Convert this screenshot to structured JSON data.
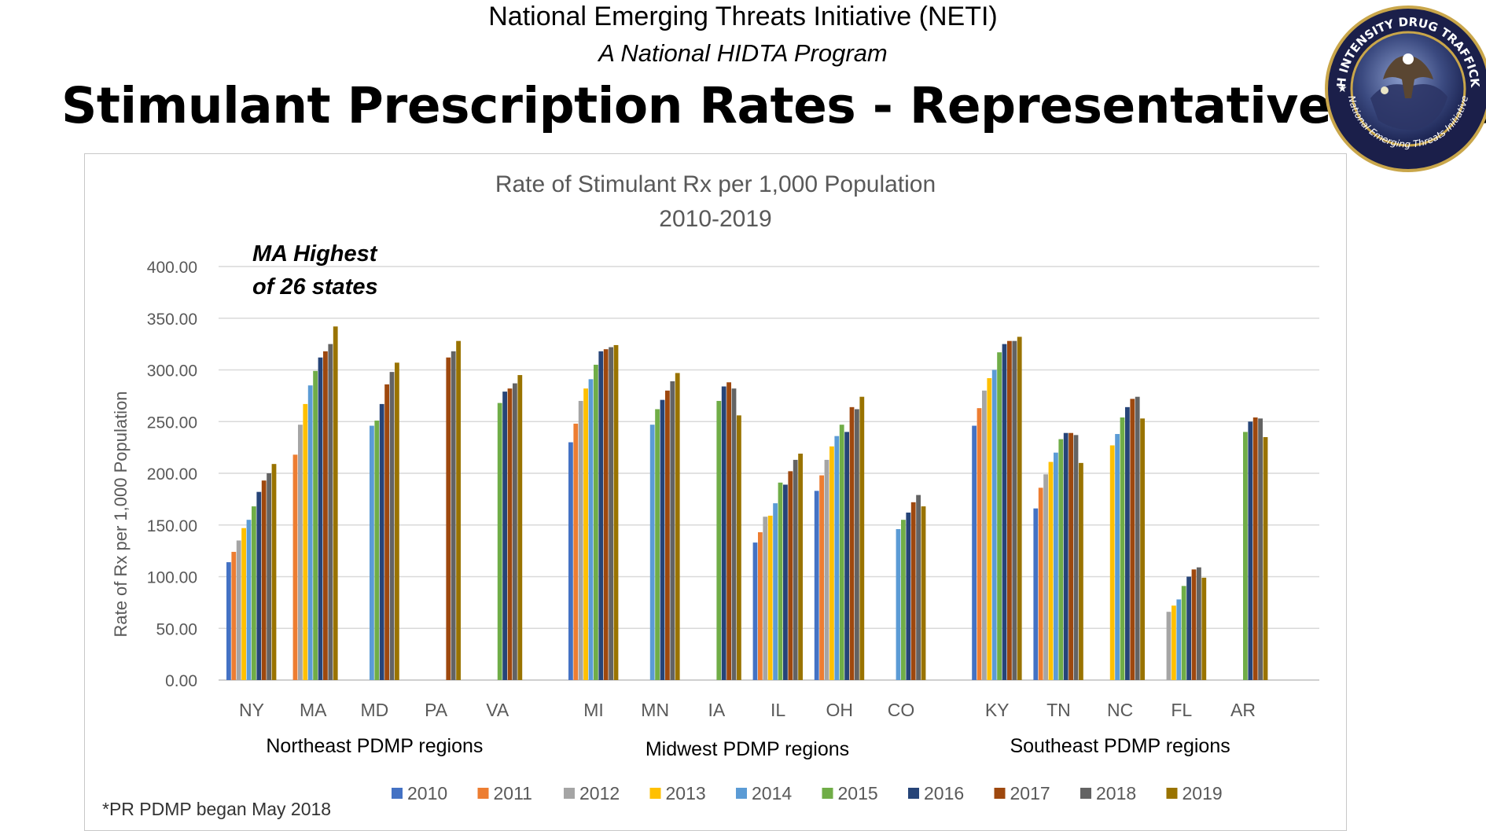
{
  "header": {
    "org_line": "National Emerging Threats Initiative (NETI)",
    "program_line": "A National HIDTA Program",
    "slide_title": "Stimulant Prescription Rates - Representative States"
  },
  "logo": {
    "ring_text_top": "HIGH INTENSITY DRUG TRAFFICKING",
    "ring_text_bottom": "National Emerging Threats Initiative",
    "ring_color": "#1b1f4a",
    "globe_color": "#3b4a80"
  },
  "annotation": {
    "line1": "MA Highest",
    "line2": "of 26 states"
  },
  "footnote": "*PR PDMP began May 2018",
  "chart_data": {
    "type": "bar",
    "title": "Rate of Stimulant Rx per 1,000 Population",
    "subtitle": "2010-2019",
    "ylabel": "Rate of Rx per 1,000 Population",
    "ylim": [
      0,
      400
    ],
    "yticks": [
      "0.00",
      "50.00",
      "100.00",
      "150.00",
      "200.00",
      "250.00",
      "300.00",
      "350.00",
      "400.00"
    ],
    "grid": true,
    "legend_position": "bottom",
    "regions": [
      {
        "label": "Northeast PDMP regions",
        "states": [
          "NY",
          "MA",
          "MD",
          "PA",
          "VA"
        ]
      },
      {
        "label": "Midwest PDMP regions",
        "states": [
          "MI",
          "MN",
          "IA",
          "IL",
          "OH",
          "CO"
        ]
      },
      {
        "label": "Southeast PDMP regions",
        "states": [
          "KY",
          "TN",
          "NC",
          "FL",
          "AR"
        ]
      }
    ],
    "categories": [
      "NY",
      "MA",
      "MD",
      "PA",
      "VA",
      "MI",
      "MN",
      "IA",
      "IL",
      "OH",
      "CO",
      "KY",
      "TN",
      "NC",
      "FL",
      "AR"
    ],
    "series": [
      {
        "name": "2010",
        "color": "#4472c4",
        "values": [
          114,
          null,
          null,
          null,
          null,
          230,
          null,
          null,
          133,
          183,
          null,
          246,
          166,
          null,
          null,
          null
        ]
      },
      {
        "name": "2011",
        "color": "#ed7d31",
        "values": [
          124,
          218,
          null,
          null,
          null,
          248,
          null,
          null,
          143,
          198,
          null,
          263,
          186,
          null,
          null,
          null
        ]
      },
      {
        "name": "2012",
        "color": "#a5a5a5",
        "values": [
          135,
          247,
          null,
          null,
          null,
          270,
          null,
          null,
          158,
          213,
          null,
          280,
          199,
          null,
          66,
          null
        ]
      },
      {
        "name": "2013",
        "color": "#ffc000",
        "values": [
          147,
          267,
          null,
          null,
          null,
          282,
          null,
          null,
          159,
          226,
          null,
          292,
          211,
          227,
          72,
          null
        ]
      },
      {
        "name": "2014",
        "color": "#5b9bd5",
        "values": [
          155,
          285,
          246,
          null,
          null,
          291,
          247,
          null,
          171,
          236,
          146,
          300,
          220,
          238,
          78,
          null
        ]
      },
      {
        "name": "2015",
        "color": "#70ad47",
        "values": [
          168,
          299,
          251,
          null,
          268,
          305,
          262,
          270,
          191,
          247,
          155,
          317,
          233,
          254,
          91,
          240
        ]
      },
      {
        "name": "2016",
        "color": "#264478",
        "values": [
          182,
          312,
          267,
          null,
          279,
          318,
          271,
          284,
          189,
          240,
          162,
          325,
          239,
          264,
          100,
          250
        ]
      },
      {
        "name": "2017",
        "color": "#9e480e",
        "values": [
          193,
          318,
          286,
          312,
          282,
          320,
          280,
          288,
          202,
          264,
          172,
          328,
          239,
          272,
          107,
          254
        ]
      },
      {
        "name": "2018",
        "color": "#636363",
        "values": [
          200,
          325,
          298,
          318,
          287,
          322,
          289,
          282,
          213,
          262,
          179,
          328,
          237,
          274,
          109,
          253
        ]
      },
      {
        "name": "2019",
        "color": "#997300",
        "values": [
          209,
          342,
          307,
          328,
          295,
          324,
          297,
          256,
          219,
          274,
          168,
          332,
          210,
          253,
          99,
          235
        ]
      }
    ]
  }
}
